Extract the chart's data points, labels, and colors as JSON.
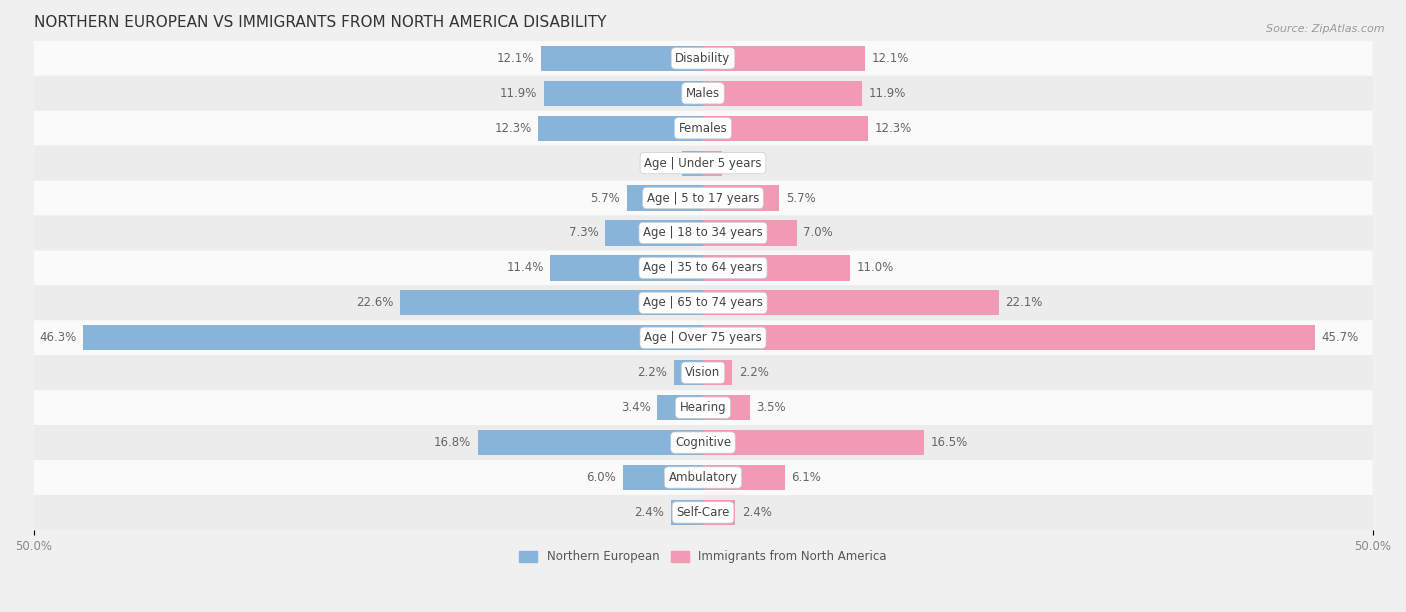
{
  "title": "NORTHERN EUROPEAN VS IMMIGRANTS FROM NORTH AMERICA DISABILITY",
  "source": "Source: ZipAtlas.com",
  "categories": [
    "Disability",
    "Males",
    "Females",
    "Age | Under 5 years",
    "Age | 5 to 17 years",
    "Age | 18 to 34 years",
    "Age | 35 to 64 years",
    "Age | 65 to 74 years",
    "Age | Over 75 years",
    "Vision",
    "Hearing",
    "Cognitive",
    "Ambulatory",
    "Self-Care"
  ],
  "left_values": [
    12.1,
    11.9,
    12.3,
    1.6,
    5.7,
    7.3,
    11.4,
    22.6,
    46.3,
    2.2,
    3.4,
    16.8,
    6.0,
    2.4
  ],
  "right_values": [
    12.1,
    11.9,
    12.3,
    1.4,
    5.7,
    7.0,
    11.0,
    22.1,
    45.7,
    2.2,
    3.5,
    16.5,
    6.1,
    2.4
  ],
  "left_color": "#89b4d9",
  "right_color": "#f299b4",
  "max_val": 50.0,
  "legend_left": "Northern European",
  "legend_right": "Immigrants from North America",
  "title_fontsize": 11,
  "label_fontsize": 8.5,
  "value_fontsize": 8.5,
  "bg_color": "#f0f0f0",
  "row_bg_colors": [
    "#fafafa",
    "#ececec"
  ],
  "bar_height": 0.72
}
